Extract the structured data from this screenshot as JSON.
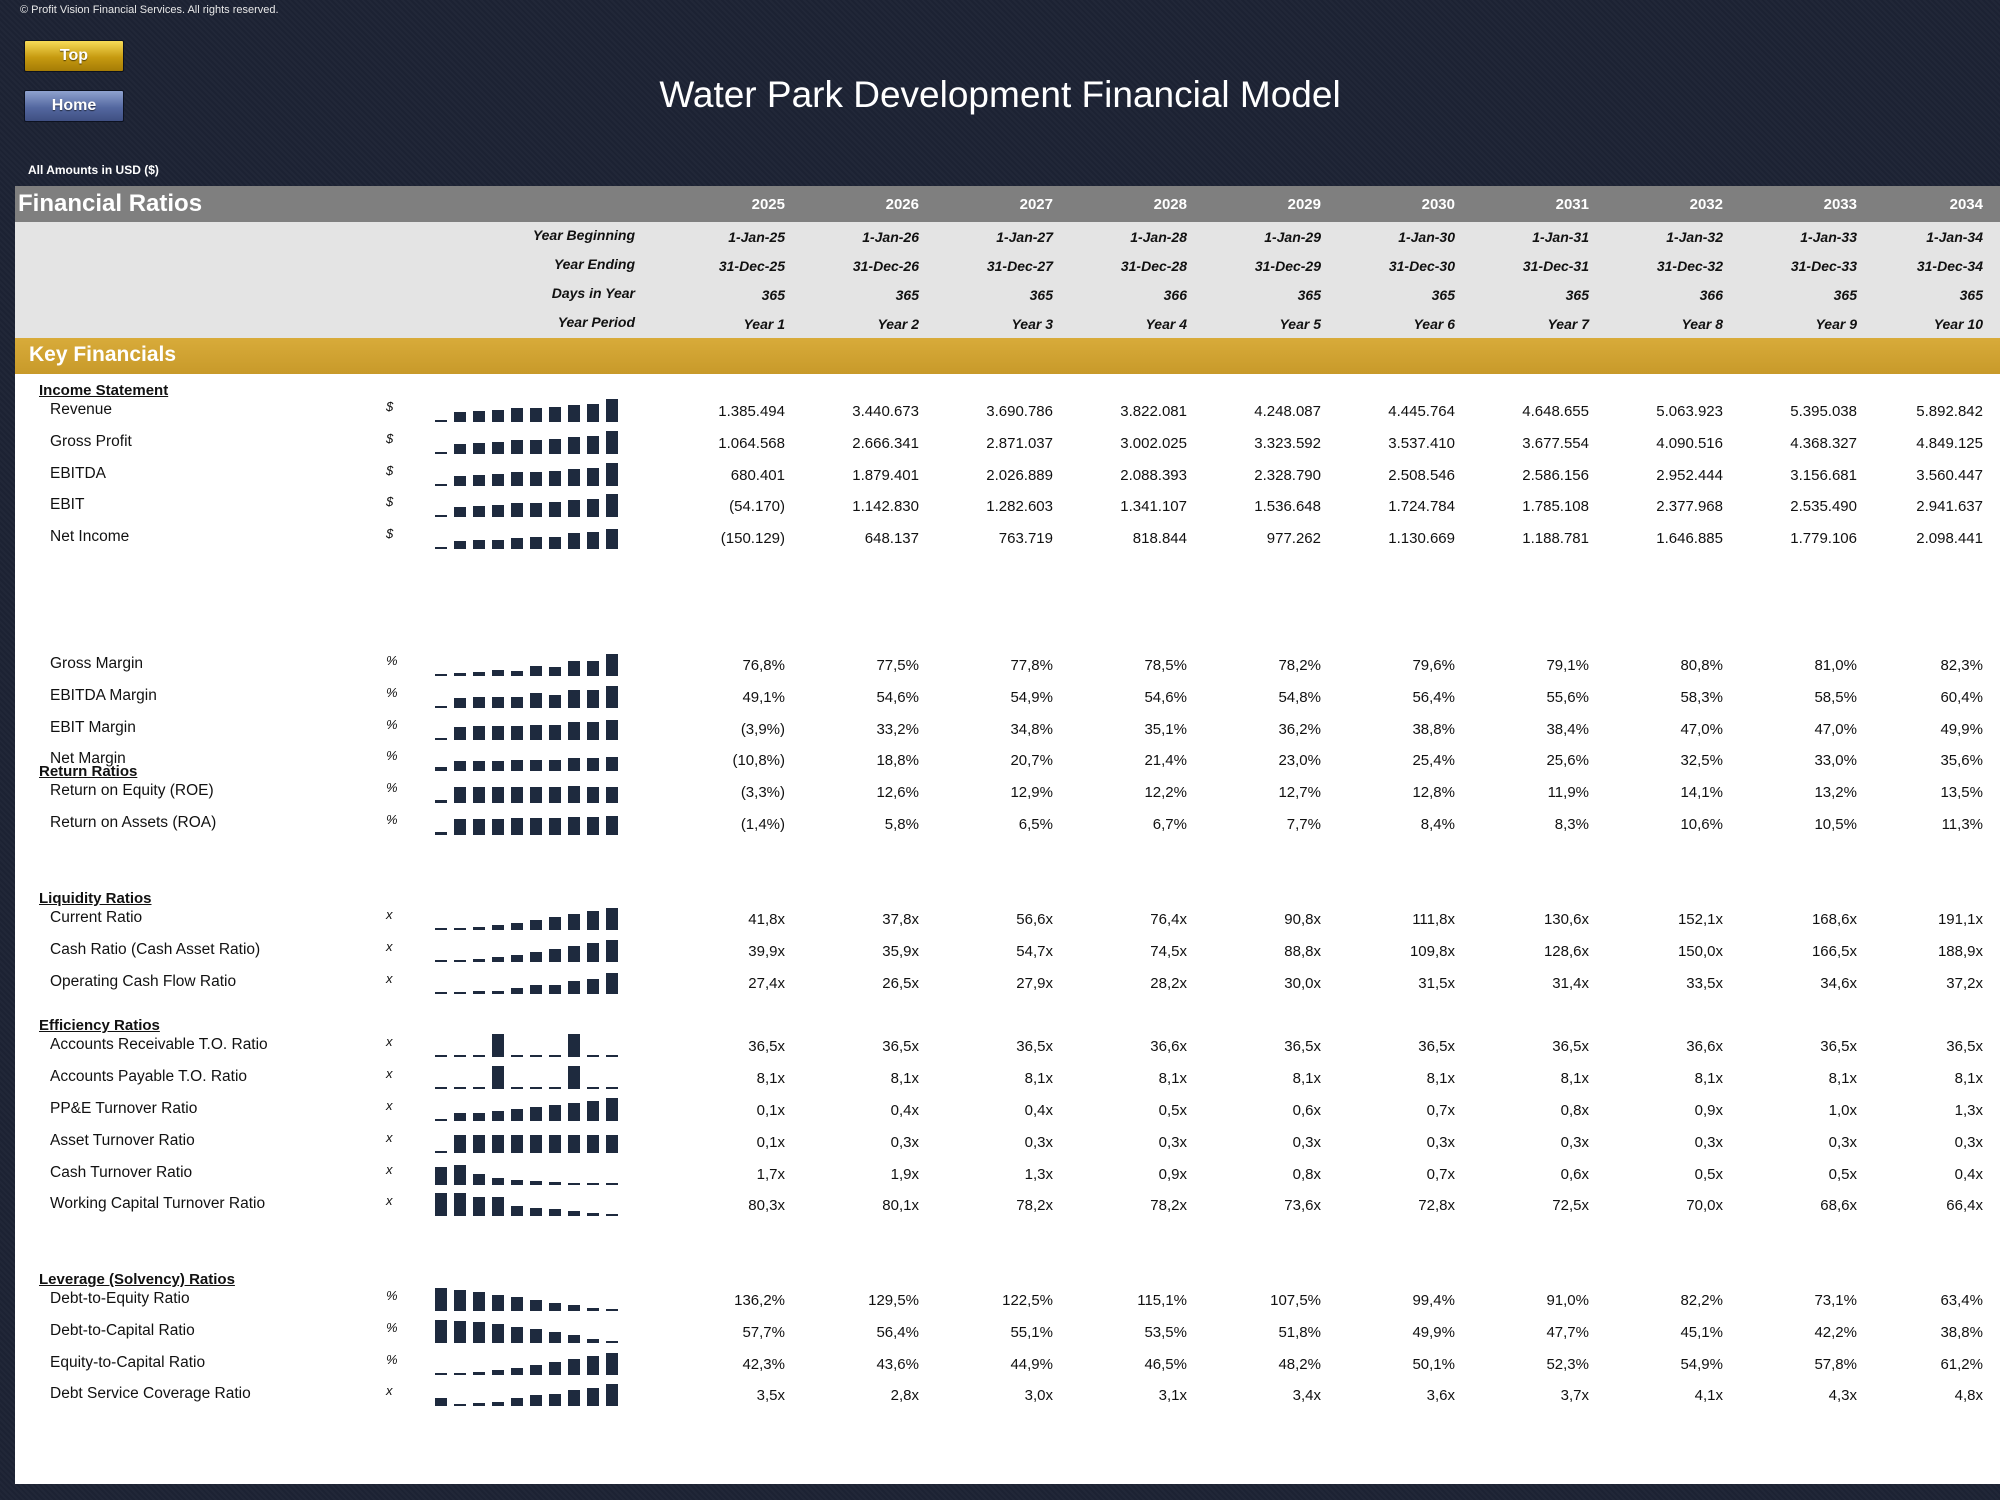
{
  "copyright": "© Profit Vision Financial Services. All rights reserved.",
  "nav": {
    "top_label": "Top",
    "home_label": "Home"
  },
  "title": "Water Park Development Financial Model",
  "amounts_note": "All Amounts in  USD ($)",
  "section_title": "Financial Ratios",
  "years": [
    "2025",
    "2026",
    "2027",
    "2028",
    "2029",
    "2030",
    "2031",
    "2032",
    "2033",
    "2034"
  ],
  "period_rows": [
    {
      "label": "Year Beginning",
      "values": [
        "1-Jan-25",
        "1-Jan-26",
        "1-Jan-27",
        "1-Jan-28",
        "1-Jan-29",
        "1-Jan-30",
        "1-Jan-31",
        "1-Jan-32",
        "1-Jan-33",
        "1-Jan-34"
      ]
    },
    {
      "label": "Year Ending",
      "values": [
        "31-Dec-25",
        "31-Dec-26",
        "31-Dec-27",
        "31-Dec-28",
        "31-Dec-29",
        "31-Dec-30",
        "31-Dec-31",
        "31-Dec-32",
        "31-Dec-33",
        "31-Dec-34"
      ]
    },
    {
      "label": "Days in Year",
      "values": [
        "365",
        "365",
        "365",
        "366",
        "365",
        "365",
        "365",
        "366",
        "365",
        "365"
      ]
    },
    {
      "label": "Year Period",
      "values": [
        "Year 1",
        "Year 2",
        "Year 3",
        "Year 4",
        "Year 5",
        "Year 6",
        "Year 7",
        "Year 8",
        "Year 9",
        "Year 10"
      ]
    }
  ],
  "key_title": "Key Financials",
  "groups": [
    {
      "title": "Income Statement",
      "rows": [
        {
          "label": "Revenue",
          "unit": "$",
          "spark": [
            0.06,
            0.4,
            0.44,
            0.46,
            0.52,
            0.55,
            0.58,
            0.65,
            0.7,
            0.9
          ],
          "values": [
            "1.385.494",
            "3.440.673",
            "3.690.786",
            "3.822.081",
            "4.248.087",
            "4.445.764",
            "4.648.655",
            "5.063.923",
            "5.395.038",
            "5.892.842"
          ]
        },
        {
          "label": "Gross Profit",
          "unit": "$",
          "spark": [
            0.06,
            0.4,
            0.44,
            0.46,
            0.52,
            0.55,
            0.58,
            0.65,
            0.7,
            0.9
          ],
          "values": [
            "1.064.568",
            "2.666.341",
            "2.871.037",
            "3.002.025",
            "3.323.592",
            "3.537.410",
            "3.677.554",
            "4.090.516",
            "4.368.327",
            "4.849.125"
          ]
        },
        {
          "label": "EBITDA",
          "unit": "$",
          "spark": [
            0.06,
            0.4,
            0.44,
            0.46,
            0.52,
            0.55,
            0.58,
            0.65,
            0.7,
            0.9
          ],
          "values": [
            "680.401",
            "1.879.401",
            "2.026.889",
            "2.088.393",
            "2.328.790",
            "2.508.546",
            "2.586.156",
            "2.952.444",
            "3.156.681",
            "3.560.447"
          ]
        },
        {
          "label": "EBIT",
          "unit": "$",
          "spark": [
            0.06,
            0.4,
            0.44,
            0.46,
            0.52,
            0.55,
            0.58,
            0.65,
            0.7,
            0.9
          ],
          "values": [
            "(54.170)",
            "1.142.830",
            "1.282.603",
            "1.341.107",
            "1.536.648",
            "1.724.784",
            "1.785.108",
            "2.377.968",
            "2.535.490",
            "2.941.637"
          ]
        },
        {
          "label": "Net Income",
          "unit": "$",
          "spark": [
            0.06,
            0.3,
            0.33,
            0.35,
            0.42,
            0.46,
            0.48,
            0.62,
            0.66,
            0.75
          ],
          "values": [
            "(150.129)",
            "648.137",
            "763.719",
            "818.844",
            "977.262",
            "1.130.669",
            "1.188.781",
            "1.646.885",
            "1.779.106",
            "2.098.441"
          ]
        }
      ]
    },
    {
      "title": "",
      "rows": [
        {
          "label": "Gross Margin",
          "unit": "%",
          "spark": [
            0.06,
            0.1,
            0.14,
            0.22,
            0.2,
            0.38,
            0.34,
            0.56,
            0.58,
            0.85
          ],
          "values": [
            "76,8%",
            "77,5%",
            "77,8%",
            "78,5%",
            "78,2%",
            "79,6%",
            "79,1%",
            "80,8%",
            "81,0%",
            "82,3%"
          ]
        },
        {
          "label": "EBITDA Margin",
          "unit": "%",
          "spark": [
            0.06,
            0.4,
            0.44,
            0.44,
            0.44,
            0.56,
            0.5,
            0.7,
            0.7,
            0.85
          ],
          "values": [
            "49,1%",
            "54,6%",
            "54,9%",
            "54,6%",
            "54,8%",
            "56,4%",
            "55,6%",
            "58,3%",
            "58,5%",
            "60,4%"
          ]
        },
        {
          "label": "EBIT Margin",
          "unit": "%",
          "spark": [
            0.06,
            0.5,
            0.52,
            0.52,
            0.54,
            0.57,
            0.56,
            0.68,
            0.68,
            0.75
          ],
          "values": [
            "(3,9%)",
            "33,2%",
            "34,8%",
            "35,1%",
            "36,2%",
            "38,8%",
            "38,4%",
            "47,0%",
            "47,0%",
            "49,9%"
          ]
        },
        {
          "label": "Net Margin",
          "unit": "%",
          "spark": [
            0.15,
            0.38,
            0.4,
            0.4,
            0.42,
            0.44,
            0.44,
            0.5,
            0.5,
            0.52
          ],
          "values": [
            "(10,8%)",
            "18,8%",
            "20,7%",
            "21,4%",
            "23,0%",
            "25,4%",
            "25,6%",
            "32,5%",
            "33,0%",
            "35,6%"
          ]
        }
      ]
    },
    {
      "title": "Return Ratios",
      "rows": [
        {
          "label": "Return on Equity (ROE)",
          "unit": "%",
          "spark": [
            0.1,
            0.62,
            0.62,
            0.62,
            0.62,
            0.62,
            0.6,
            0.64,
            0.62,
            0.62
          ],
          "values": [
            "(3,3%)",
            "12,6%",
            "12,9%",
            "12,2%",
            "12,7%",
            "12,8%",
            "11,9%",
            "14,1%",
            "13,2%",
            "13,5%"
          ]
        },
        {
          "label": "Return on Assets (ROA)",
          "unit": "%",
          "spark": [
            0.1,
            0.6,
            0.62,
            0.62,
            0.64,
            0.66,
            0.66,
            0.7,
            0.7,
            0.72
          ],
          "values": [
            "(1,4%)",
            "5,8%",
            "6,5%",
            "6,7%",
            "7,7%",
            "8,4%",
            "8,3%",
            "10,6%",
            "10,5%",
            "11,3%"
          ]
        }
      ]
    },
    {
      "title": "Liquidity Ratios",
      "rows": [
        {
          "label": "Current Ratio",
          "unit": "x",
          "spark": [
            0.06,
            0.05,
            0.1,
            0.18,
            0.28,
            0.4,
            0.5,
            0.62,
            0.72,
            0.85
          ],
          "values": [
            "41,8x",
            "37,8x",
            "56,6x",
            "76,4x",
            "90,8x",
            "111,8x",
            "130,6x",
            "152,1x",
            "168,6x",
            "191,1x"
          ]
        },
        {
          "label": "Cash Ratio (Cash Asset Ratio)",
          "unit": "x",
          "spark": [
            0.06,
            0.05,
            0.1,
            0.18,
            0.28,
            0.4,
            0.5,
            0.62,
            0.72,
            0.85
          ],
          "values": [
            "39,9x",
            "35,9x",
            "54,7x",
            "74,5x",
            "88,8x",
            "109,8x",
            "128,6x",
            "150,0x",
            "166,5x",
            "188,9x"
          ]
        },
        {
          "label": "Operating Cash Flow Ratio",
          "unit": "x",
          "spark": [
            0.08,
            0.05,
            0.1,
            0.12,
            0.22,
            0.34,
            0.34,
            0.5,
            0.58,
            0.8
          ],
          "values": [
            "27,4x",
            "26,5x",
            "27,9x",
            "28,2x",
            "30,0x",
            "31,5x",
            "31,4x",
            "33,5x",
            "34,6x",
            "37,2x"
          ]
        }
      ]
    },
    {
      "title": "Efficiency Ratios",
      "rows": [
        {
          "label": "Accounts Receivable T.O. Ratio",
          "unit": "x",
          "spark": [
            0.06,
            0.06,
            0.06,
            0.9,
            0.06,
            0.06,
            0.06,
            0.9,
            0.06,
            0.06
          ],
          "values": [
            "36,5x",
            "36,5x",
            "36,5x",
            "36,6x",
            "36,5x",
            "36,5x",
            "36,5x",
            "36,6x",
            "36,5x",
            "36,5x"
          ]
        },
        {
          "label": "Accounts Payable T.O. Ratio",
          "unit": "x",
          "spark": [
            0.06,
            0.06,
            0.06,
            0.9,
            0.06,
            0.06,
            0.06,
            0.9,
            0.06,
            0.06
          ],
          "values": [
            "8,1x",
            "8,1x",
            "8,1x",
            "8,1x",
            "8,1x",
            "8,1x",
            "8,1x",
            "8,1x",
            "8,1x",
            "8,1x"
          ]
        },
        {
          "label": "PP&E Turnover Ratio",
          "unit": "x",
          "spark": [
            0.06,
            0.3,
            0.3,
            0.38,
            0.45,
            0.52,
            0.6,
            0.68,
            0.75,
            0.9
          ],
          "values": [
            "0,1x",
            "0,4x",
            "0,4x",
            "0,5x",
            "0,6x",
            "0,7x",
            "0,8x",
            "0,9x",
            "1,0x",
            "1,3x"
          ]
        },
        {
          "label": "Asset Turnover Ratio",
          "unit": "x",
          "spark": [
            0.06,
            0.7,
            0.7,
            0.7,
            0.7,
            0.7,
            0.7,
            0.7,
            0.7,
            0.7
          ],
          "values": [
            "0,1x",
            "0,3x",
            "0,3x",
            "0,3x",
            "0,3x",
            "0,3x",
            "0,3x",
            "0,3x",
            "0,3x",
            "0,3x"
          ]
        },
        {
          "label": "Cash Turnover Ratio",
          "unit": "x",
          "spark": [
            0.7,
            0.78,
            0.42,
            0.26,
            0.2,
            0.14,
            0.1,
            0.08,
            0.08,
            0.05
          ],
          "values": [
            "1,7x",
            "1,9x",
            "1,3x",
            "0,9x",
            "0,8x",
            "0,7x",
            "0,6x",
            "0,5x",
            "0,5x",
            "0,4x"
          ]
        },
        {
          "label": "Working Capital Turnover Ratio",
          "unit": "x",
          "spark": [
            0.9,
            0.88,
            0.72,
            0.72,
            0.38,
            0.32,
            0.28,
            0.18,
            0.12,
            0.05
          ],
          "values": [
            "80,3x",
            "80,1x",
            "78,2x",
            "78,2x",
            "73,6x",
            "72,8x",
            "72,5x",
            "70,0x",
            "68,6x",
            "66,4x"
          ]
        }
      ]
    },
    {
      "title": "Leverage (Solvency) Ratios",
      "rows": [
        {
          "label": "Debt-to-Equity Ratio",
          "unit": "%",
          "spark": [
            0.9,
            0.8,
            0.72,
            0.62,
            0.52,
            0.42,
            0.32,
            0.22,
            0.12,
            0.05
          ],
          "values": [
            "136,2%",
            "129,5%",
            "122,5%",
            "115,1%",
            "107,5%",
            "99,4%",
            "91,0%",
            "82,2%",
            "73,1%",
            "63,4%"
          ]
        },
        {
          "label": "Debt-to-Capital Ratio",
          "unit": "%",
          "spark": [
            0.9,
            0.86,
            0.8,
            0.72,
            0.62,
            0.52,
            0.42,
            0.3,
            0.16,
            0.05
          ],
          "values": [
            "57,7%",
            "56,4%",
            "55,1%",
            "53,5%",
            "51,8%",
            "49,9%",
            "47,7%",
            "45,1%",
            "42,2%",
            "38,8%"
          ]
        },
        {
          "label": "Equity-to-Capital Ratio",
          "unit": "%",
          "spark": [
            0.06,
            0.08,
            0.12,
            0.2,
            0.28,
            0.38,
            0.5,
            0.62,
            0.72,
            0.85
          ],
          "values": [
            "42,3%",
            "43,6%",
            "44,9%",
            "46,5%",
            "48,2%",
            "50,1%",
            "52,3%",
            "54,9%",
            "57,8%",
            "61,2%"
          ]
        },
        {
          "label": "Debt Service Coverage Ratio",
          "unit": "x",
          "spark": [
            0.3,
            0.06,
            0.12,
            0.16,
            0.3,
            0.42,
            0.48,
            0.62,
            0.7,
            0.85
          ],
          "values": [
            "3,5x",
            "2,8x",
            "3,0x",
            "3,1x",
            "3,4x",
            "3,6x",
            "3,7x",
            "4,1x",
            "4,3x",
            "4,8x"
          ]
        }
      ]
    }
  ]
}
